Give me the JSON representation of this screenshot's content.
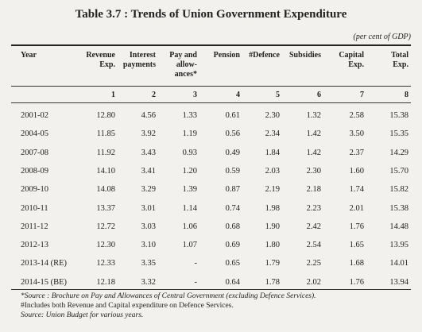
{
  "title": "Table 3.7 : Trends of Union Government Expenditure",
  "unit_note": "(per cent of GDP)",
  "headers": [
    "Year",
    "Revenue Exp.",
    "Interest payments",
    "Pay and allow-ances*",
    "Pension",
    "#Defence",
    "Subsidies",
    "Capital Exp.",
    "Total Exp."
  ],
  "column_numbers": [
    "1",
    "2",
    "3",
    "4",
    "5",
    "6",
    "7",
    "8"
  ],
  "rows": [
    [
      "2001-02",
      "12.80",
      "4.56",
      "1.33",
      "0.61",
      "2.30",
      "1.32",
      "2.58",
      "15.38"
    ],
    [
      "2004-05",
      "11.85",
      "3.92",
      "1.19",
      "0.56",
      "2.34",
      "1.42",
      "3.50",
      "15.35"
    ],
    [
      "2007-08",
      "11.92",
      "3.43",
      "0.93",
      "0.49",
      "1.84",
      "1.42",
      "2.37",
      "14.29"
    ],
    [
      "2008-09",
      "14.10",
      "3.41",
      "1.20",
      "0.59",
      "2.03",
      "2.30",
      "1.60",
      "15.70"
    ],
    [
      "2009-10",
      "14.08",
      "3.29",
      "1.39",
      "0.87",
      "2.19",
      "2.18",
      "1.74",
      "15.82"
    ],
    [
      "2010-11",
      "13.37",
      "3.01",
      "1.14",
      "0.74",
      "1.98",
      "2.23",
      "2.01",
      "15.38"
    ],
    [
      "2011-12",
      "12.72",
      "3.03",
      "1.06",
      "0.68",
      "1.90",
      "2.42",
      "1.76",
      "14.48"
    ],
    [
      "2012-13",
      "12.30",
      "3.10",
      "1.07",
      "0.69",
      "1.80",
      "2.54",
      "1.65",
      "13.95"
    ],
    [
      "2013-14 (RE)",
      "12.33",
      "3.35",
      "-",
      "0.65",
      "1.79",
      "2.25",
      "1.68",
      "14.01"
    ],
    [
      "2014-15 (BE)",
      "12.18",
      "3.32",
      "-",
      "0.64",
      "1.78",
      "2.02",
      "1.76",
      "13.94"
    ]
  ],
  "footnotes": [
    "*Source : Brochure on Pay and Allowances of Central Government (excluding Defence Services).",
    "#Includes both Revenue and Capital expenditure on Defence Services.",
    "Source: Union Budget for various years."
  ]
}
